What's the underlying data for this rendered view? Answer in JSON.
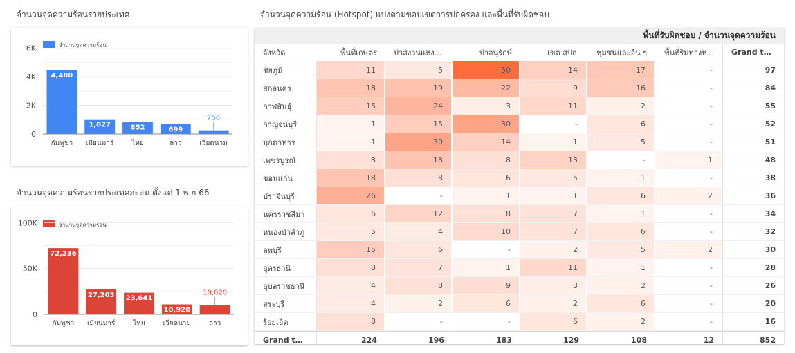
{
  "chart_data": [
    {
      "type": "bar",
      "title": "จำนวนจุดความร้อนรายประเทศ",
      "legend": "จำนวนจุดความร้อน",
      "legend_position": "top-left",
      "categories": [
        "กัมพูชา",
        "เมียนมาร์",
        "ไทย",
        "ลาว",
        "เวียดนาม"
      ],
      "values": [
        4480,
        1027,
        852,
        699,
        256
      ],
      "value_labels": [
        "4,480",
        "1,027",
        "852",
        "699",
        "256"
      ],
      "ylim": [
        0,
        7000
      ],
      "yticks": [
        0,
        2000,
        4000,
        6000
      ],
      "ytick_labels": [
        "0",
        "2K",
        "4K",
        "6K"
      ],
      "grid": true,
      "color": "#4285f4"
    },
    {
      "type": "bar",
      "title": "จำนวนจุดความร้อนรายประเทศสะสม ตั้งแต่ 1 พ.ย 66",
      "legend": "จำนวนจุดความร้อน",
      "legend_position": "top-left",
      "categories": [
        "กัมพูชา",
        "เมียนมาร์",
        "ไทย",
        "เวียดนาม",
        "ลาว"
      ],
      "values": [
        72236,
        27203,
        23641,
        10920,
        10020
      ],
      "value_labels": [
        "72,236",
        "27,203",
        "23,641",
        "10,920",
        "10,020"
      ],
      "ylim": [
        0,
        110000
      ],
      "yticks": [
        0,
        50000,
        100000
      ],
      "ytick_labels": [
        "0",
        "50K",
        "100K"
      ],
      "grid": true,
      "color": "#db4437"
    },
    {
      "type": "table",
      "title": "จำนวนจุดความร้อน (Hotspot) แบ่งตามขอบเขตการปกครอง และพื้นที่รับผิดชอบ",
      "super_header": "พื้นที่รับผิดชอบ / จำนวนจุดความร้อน",
      "columns": [
        "จังหวัด",
        "พื้นที่เกษตร",
        "ป่าสงวนแห่งช...",
        "ป่าอนุรักษ์",
        "เขต สปก.",
        "ชุมชนและอื่น ๆ",
        "พื้นที่ริมทางห...",
        "Grand total"
      ],
      "rows": [
        {
          "province": "ชัยภูมิ",
          "values": [
            11,
            5,
            50,
            14,
            17,
            null
          ],
          "total": 97
        },
        {
          "province": "สกลนคร",
          "values": [
            18,
            19,
            22,
            9,
            16,
            null
          ],
          "total": 84
        },
        {
          "province": "กาฬสินธุ์",
          "values": [
            15,
            24,
            3,
            11,
            2,
            null
          ],
          "total": 55
        },
        {
          "province": "กาญจนบุรี",
          "values": [
            1,
            15,
            30,
            null,
            6,
            null
          ],
          "total": 52
        },
        {
          "province": "มุกดาหาร",
          "values": [
            1,
            30,
            14,
            1,
            5,
            null
          ],
          "total": 51
        },
        {
          "province": "เพชรบูรณ์",
          "values": [
            8,
            18,
            8,
            13,
            null,
            1
          ],
          "total": 48
        },
        {
          "province": "ขอนแก่น",
          "values": [
            18,
            8,
            6,
            5,
            1,
            null
          ],
          "total": 38
        },
        {
          "province": "ปราจีนบุรี",
          "values": [
            26,
            null,
            1,
            1,
            6,
            2
          ],
          "total": 36
        },
        {
          "province": "นครราชสีมา",
          "values": [
            6,
            12,
            8,
            7,
            1,
            null
          ],
          "total": 34
        },
        {
          "province": "หนองบัวลำภู",
          "values": [
            5,
            4,
            10,
            7,
            6,
            null
          ],
          "total": 32
        },
        {
          "province": "ลพบุรี",
          "values": [
            15,
            6,
            null,
            2,
            5,
            2
          ],
          "total": 30
        },
        {
          "province": "อุดรธานี",
          "values": [
            8,
            7,
            1,
            11,
            1,
            null
          ],
          "total": 28
        },
        {
          "province": "อุบลราชธานี",
          "values": [
            4,
            8,
            9,
            3,
            2,
            null
          ],
          "total": 26
        },
        {
          "province": "สระบุรี",
          "values": [
            4,
            2,
            6,
            2,
            6,
            null
          ],
          "total": 20
        },
        {
          "province": "ร้อยเอ็ด",
          "values": [
            8,
            null,
            null,
            6,
            2,
            null
          ],
          "total": 16
        }
      ],
      "footer": {
        "label": "Grand total",
        "values": [
          224,
          196,
          183,
          129,
          108,
          12
        ],
        "total": 852
      },
      "empty_symbol": "-",
      "heat_color_max": "#ff6d3f",
      "heat_max_value": 50
    }
  ]
}
